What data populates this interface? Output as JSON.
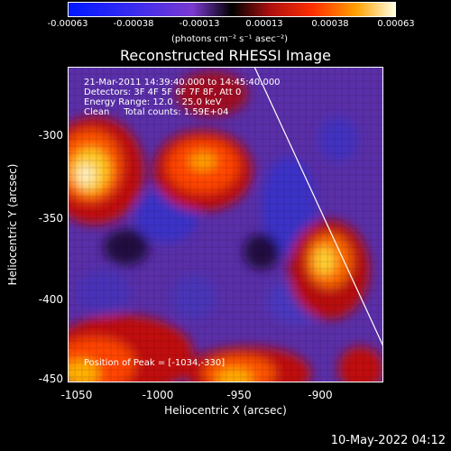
{
  "colorbar": {
    "ticks": [
      "-0.00063",
      "-0.00038",
      "-0.00013",
      "0.00013",
      "0.00038",
      "0.00063"
    ],
    "units": "(photons cm⁻² s⁻¹ asec⁻²)"
  },
  "title": "Reconstructed RHESSI Image",
  "annotations": {
    "time": "21-Mar-2011 14:39:40.000 to 14:45:40.000",
    "detectors": "Detectors: 3F 4F 5F 6F 7F 8F, Att 0",
    "energy": "Energy Range: 12.0 - 25.0 keV",
    "method": "Clean     Total counts: 1.59E+04",
    "peak": "Position of Peak = [-1034,-330]"
  },
  "axes": {
    "xlabel": "Heliocentric X (arcsec)",
    "ylabel": "Heliocentric Y (arcsec)",
    "xticks": [
      "-1050",
      "-1000",
      "-950",
      "-900"
    ],
    "yticks": [
      "-300",
      "-350",
      "-400",
      "-450"
    ]
  },
  "footer": "10-May-2022 04:12",
  "colors": {
    "background": "#000000",
    "text": "#ffffff",
    "limb": "#ffffff"
  }
}
